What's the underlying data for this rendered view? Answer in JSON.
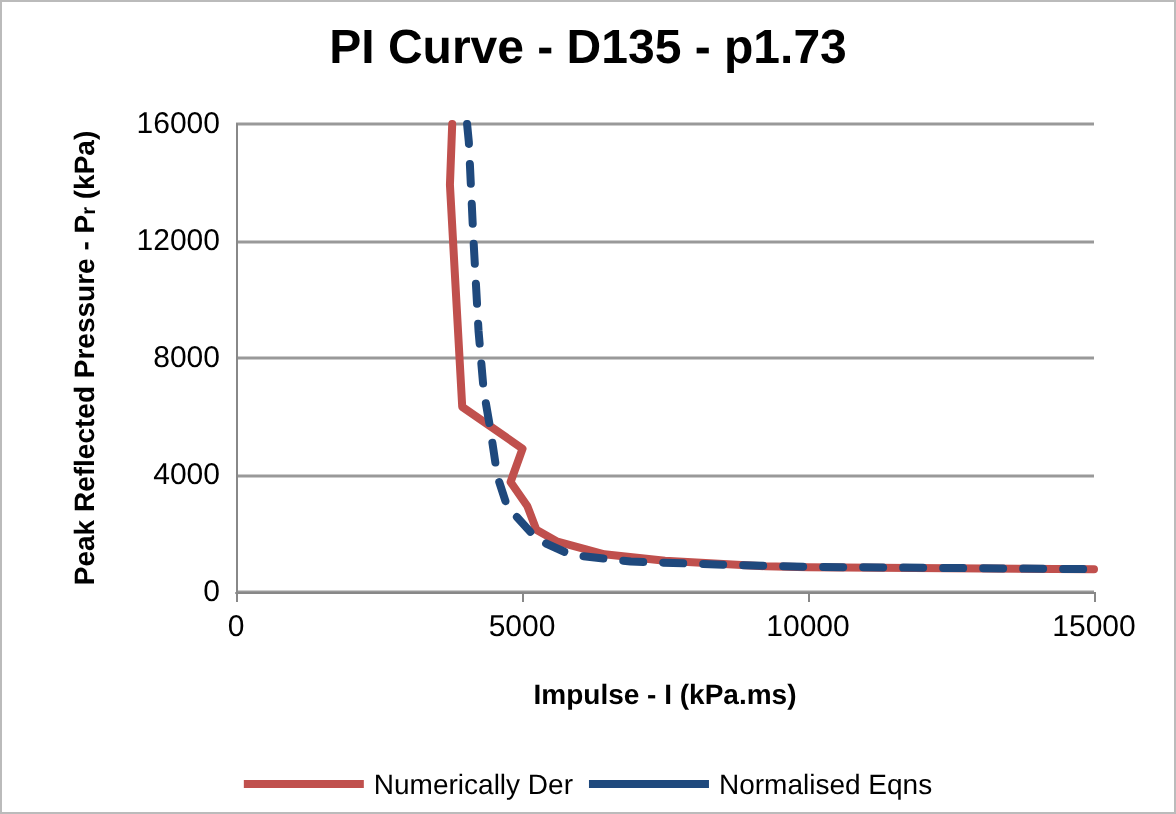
{
  "chart_data": {
    "type": "line",
    "title": "PI Curve - D135 - p1.73",
    "xlabel": "Impulse - I (kPa.ms)",
    "ylabel": "Peak Reflected Pressure - P$_{r}$ (kPa)",
    "xlim": [
      0,
      15000
    ],
    "xticks": [
      0,
      5000,
      10000,
      15000
    ],
    "ylim": [
      0,
      16000
    ],
    "yticks": [
      0,
      4000,
      8000,
      12000,
      16000
    ],
    "grid": "y",
    "legend": "bottom",
    "marker": "none",
    "series": [
      {
        "name": "Numerically Der",
        "color": "#c0504d",
        "line_style": "solid",
        "x": [
          3780,
          3740,
          3955,
          5010,
          4800,
          5095,
          5250,
          5620,
          6440,
          7500,
          9260,
          10000,
          15000
        ],
        "values": [
          16000,
          13920,
          6330,
          4900,
          3760,
          2930,
          2130,
          1720,
          1290,
          1070,
          880,
          850,
          780
        ]
      },
      {
        "name": "Normalised Eqns",
        "color": "#1f497d",
        "line_style": "dashed",
        "x": [
          4040,
          4070,
          4150,
          4240,
          4330,
          4450,
          4570,
          4740,
          5270,
          5860,
          6900,
          8560,
          10000,
          15000
        ],
        "values": [
          16000,
          15400,
          12100,
          8930,
          6890,
          5530,
          3950,
          2930,
          1790,
          1270,
          1040,
          930,
          860,
          780
        ]
      }
    ]
  }
}
